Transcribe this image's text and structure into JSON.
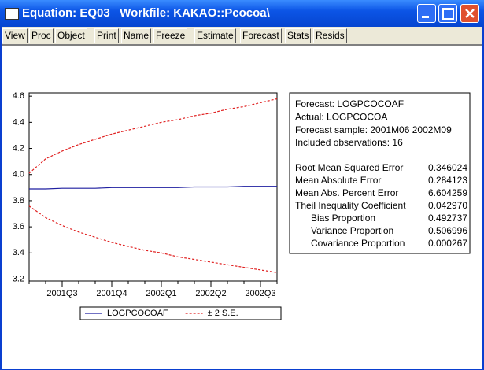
{
  "window": {
    "title": "Equation: EQ03   Workfile: KAKAO::Pcocoa\\"
  },
  "toolbar": [
    "View",
    "Proc",
    "Object",
    "Print",
    "Name",
    "Freeze",
    "Estimate",
    "Forecast",
    "Stats",
    "Resids"
  ],
  "chart_data": {
    "type": "line",
    "categories": [
      null,
      null,
      "2001Q3",
      null,
      null,
      "2001Q4",
      null,
      null,
      "2002Q1",
      null,
      null,
      "2002Q2",
      null,
      null,
      "2002Q3",
      null
    ],
    "series": [
      {
        "name": "LOGPCOCOAF",
        "color": "#1f1fa0",
        "values": [
          3.89,
          3.89,
          3.895,
          3.895,
          3.895,
          3.9,
          3.9,
          3.9,
          3.9,
          3.9,
          3.905,
          3.905,
          3.905,
          3.91,
          3.91,
          3.91
        ]
      },
      {
        "name": "± 2 S.E.",
        "color": "#e02020",
        "dashed": true,
        "upper": [
          4.01,
          4.12,
          4.18,
          4.23,
          4.27,
          4.31,
          4.34,
          4.37,
          4.4,
          4.42,
          4.45,
          4.47,
          4.5,
          4.52,
          4.55,
          4.58
        ],
        "lower": [
          3.76,
          3.67,
          3.61,
          3.56,
          3.52,
          3.48,
          3.45,
          3.42,
          3.4,
          3.37,
          3.35,
          3.33,
          3.31,
          3.29,
          3.27,
          3.25
        ]
      }
    ],
    "ylim": [
      3.185,
      4.625
    ],
    "yticks": [
      3.2,
      3.4,
      3.6,
      3.8,
      {
        "value": 4,
        "label": "4.0"
      },
      4.2,
      4.4,
      4.6
    ]
  },
  "forecast_stats": {
    "header": [
      "Forecast: LOGPCOCOAF",
      "Actual: LOGPCOCOA",
      "Forecast sample: 2001M06 2002M09",
      "Included observations: 16"
    ],
    "rows": [
      {
        "label": "Root Mean Squared Error",
        "value": "0.346024"
      },
      {
        "label": "Mean Absolute Error",
        "value": "0.284123"
      },
      {
        "label": "Mean Abs. Percent Error",
        "value": "6.604259"
      },
      {
        "label": "Theil Inequality Coefficient",
        "value": "0.042970"
      },
      {
        "label": "Bias Proportion",
        "value": "0.492737"
      },
      {
        "label": "Variance Proportion",
        "value": "0.506996"
      },
      {
        "label": "Covariance Proportion",
        "value": "0.000267"
      }
    ]
  }
}
